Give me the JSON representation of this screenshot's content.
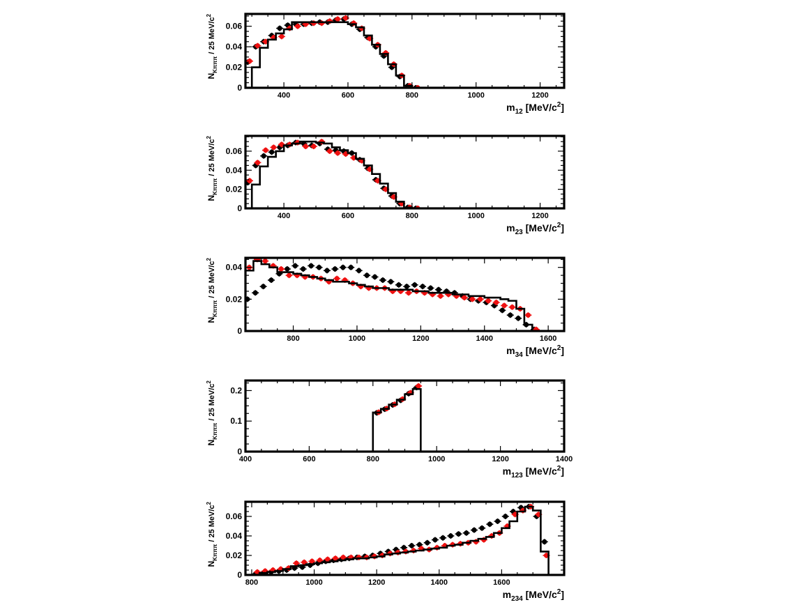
{
  "chart_data": [
    {
      "type": "line",
      "ylabel": "N",
      "ylabel_sub": "Kπππ",
      "ylabel_rest": " / 25 MeV/c",
      "ylabel_sup": "2",
      "xlabel": "m",
      "xlabel_sub": "12",
      "xlabel_rest": " [MeV/c",
      "xlabel_sup": "2",
      "xlabel_end": "]",
      "xlim": [
        280,
        1275
      ],
      "ylim": [
        0,
        0.072
      ],
      "xticks": [
        400,
        600,
        800,
        1000,
        1200
      ],
      "xtick_labels": [
        "400",
        "600",
        "800",
        "1000",
        "1200"
      ],
      "yticks": [
        0,
        0.02,
        0.04,
        0.06
      ],
      "ytick_labels": [
        "0",
        "0.02",
        "0.04",
        "0.06"
      ],
      "series": [
        {
          "color": "#000000",
          "style": "points",
          "x": [
            287,
            312,
            337,
            362,
            387,
            412,
            437,
            462,
            487,
            512,
            537,
            562,
            587,
            612,
            637,
            662,
            687,
            712,
            737,
            762,
            787,
            812
          ],
          "y": [
            0.025,
            0.04,
            0.045,
            0.051,
            0.058,
            0.061,
            0.062,
            0.062,
            0.063,
            0.064,
            0.064,
            0.066,
            0.067,
            0.062,
            0.057,
            0.049,
            0.04,
            0.031,
            0.02,
            0.011,
            0.002,
            0.0
          ]
        },
        {
          "color": "#ee1111",
          "style": "points",
          "x": [
            293,
            318,
            343,
            368,
            393,
            418,
            443,
            468,
            493,
            518,
            543,
            568,
            593,
            618,
            643,
            668,
            693,
            718,
            743,
            768,
            793,
            818
          ],
          "y": [
            0.026,
            0.041,
            0.045,
            0.049,
            0.05,
            0.058,
            0.06,
            0.062,
            0.063,
            0.063,
            0.065,
            0.067,
            0.068,
            0.063,
            0.058,
            0.048,
            0.042,
            0.034,
            0.023,
            0.012,
            0.002,
            0.0
          ]
        },
        {
          "color": "#000000",
          "style": "hist",
          "edges": [
            300,
            325,
            350,
            375,
            400,
            425,
            450,
            475,
            500,
            525,
            550,
            575,
            600,
            625,
            650,
            675,
            700,
            725,
            750,
            775,
            800
          ],
          "values": [
            0.02,
            0.039,
            0.047,
            0.053,
            0.057,
            0.064,
            0.064,
            0.064,
            0.064,
            0.064,
            0.064,
            0.064,
            0.062,
            0.059,
            0.051,
            0.042,
            0.033,
            0.023,
            0.012,
            0.002
          ]
        }
      ]
    },
    {
      "type": "line",
      "ylabel": "N",
      "ylabel_sub": "Kπππ",
      "ylabel_rest": " / 25 MeV/c",
      "ylabel_sup": "2",
      "xlabel": "m",
      "xlabel_sub": "23",
      "xlabel_rest": " [MeV/c",
      "xlabel_sup": "2",
      "xlabel_end": "]",
      "xlim": [
        280,
        1275
      ],
      "ylim": [
        0,
        0.076
      ],
      "xticks": [
        400,
        600,
        800,
        1000,
        1200
      ],
      "xtick_labels": [
        "400",
        "600",
        "800",
        "1000",
        "1200"
      ],
      "yticks": [
        0,
        0.02,
        0.04,
        0.06
      ],
      "ytick_labels": [
        "0",
        "0.02",
        "0.04",
        "0.06"
      ],
      "series": [
        {
          "color": "#000000",
          "style": "points",
          "x": [
            287,
            312,
            337,
            362,
            387,
            412,
            437,
            462,
            487,
            512,
            537,
            562,
            587,
            612,
            637,
            662,
            687,
            712,
            737,
            762,
            787,
            812
          ],
          "y": [
            0.027,
            0.045,
            0.055,
            0.059,
            0.064,
            0.066,
            0.069,
            0.068,
            0.066,
            0.068,
            0.062,
            0.061,
            0.06,
            0.058,
            0.051,
            0.042,
            0.03,
            0.021,
            0.013,
            0.005,
            0.001,
            0.0
          ]
        },
        {
          "color": "#ee1111",
          "style": "points",
          "x": [
            293,
            318,
            343,
            368,
            393,
            418,
            443,
            468,
            493,
            518,
            543,
            568,
            593,
            618,
            643,
            668,
            693,
            718,
            743,
            768,
            793,
            818
          ],
          "y": [
            0.029,
            0.048,
            0.061,
            0.064,
            0.067,
            0.067,
            0.069,
            0.065,
            0.065,
            0.07,
            0.06,
            0.058,
            0.057,
            0.053,
            0.05,
            0.041,
            0.029,
            0.02,
            0.012,
            0.005,
            0.001,
            0.0
          ]
        },
        {
          "color": "#000000",
          "style": "hist",
          "edges": [
            300,
            325,
            350,
            375,
            400,
            425,
            450,
            475,
            500,
            525,
            550,
            575,
            600,
            625,
            650,
            675,
            700,
            725,
            750,
            775,
            800
          ],
          "values": [
            0.025,
            0.044,
            0.054,
            0.06,
            0.066,
            0.068,
            0.07,
            0.07,
            0.069,
            0.068,
            0.064,
            0.061,
            0.058,
            0.052,
            0.045,
            0.036,
            0.026,
            0.016,
            0.007,
            0.001
          ]
        }
      ]
    },
    {
      "type": "line",
      "ylabel": "N",
      "ylabel_sub": "Kπππ",
      "ylabel_rest": " / 25 MeV/c",
      "ylabel_sup": "2",
      "xlabel": "m",
      "xlabel_sub": "34",
      "xlabel_rest": " [MeV/c",
      "xlabel_sup": "2",
      "xlabel_end": "]",
      "xlim": [
        650,
        1650
      ],
      "ylim": [
        0,
        0.046
      ],
      "xticks": [
        800,
        1000,
        1200,
        1400,
        1600
      ],
      "xtick_labels": [
        "800",
        "1000",
        "1200",
        "1400",
        "1600"
      ],
      "yticks": [
        0,
        0.02,
        0.04
      ],
      "ytick_labels": [
        "0",
        "0.02",
        "0.04"
      ],
      "series": [
        {
          "color": "#000000",
          "style": "points",
          "x": [
            656,
            681,
            706,
            731,
            756,
            781,
            806,
            831,
            856,
            881,
            906,
            931,
            956,
            981,
            1006,
            1031,
            1056,
            1081,
            1106,
            1131,
            1156,
            1181,
            1206,
            1231,
            1256,
            1281,
            1306,
            1331,
            1356,
            1381,
            1406,
            1431,
            1456,
            1481,
            1506,
            1531,
            1556
          ],
          "y": [
            0.02,
            0.024,
            0.028,
            0.032,
            0.036,
            0.039,
            0.041,
            0.039,
            0.041,
            0.04,
            0.038,
            0.039,
            0.04,
            0.04,
            0.038,
            0.035,
            0.034,
            0.032,
            0.031,
            0.029,
            0.028,
            0.029,
            0.028,
            0.027,
            0.026,
            0.025,
            0.024,
            0.022,
            0.02,
            0.019,
            0.018,
            0.016,
            0.013,
            0.01,
            0.008,
            0.004,
            0.001
          ]
        },
        {
          "color": "#ee1111",
          "style": "points",
          "x": [
            662,
            687,
            712,
            737,
            762,
            787,
            812,
            837,
            862,
            887,
            912,
            937,
            962,
            987,
            1012,
            1037,
            1062,
            1087,
            1112,
            1137,
            1162,
            1187,
            1212,
            1237,
            1262,
            1287,
            1312,
            1337,
            1362,
            1387,
            1412,
            1437,
            1462,
            1487,
            1512,
            1537,
            1562
          ],
          "y": [
            0.04,
            0.045,
            0.044,
            0.041,
            0.039,
            0.035,
            0.035,
            0.034,
            0.034,
            0.033,
            0.031,
            0.033,
            0.032,
            0.03,
            0.028,
            0.027,
            0.027,
            0.027,
            0.025,
            0.025,
            0.024,
            0.025,
            0.024,
            0.023,
            0.022,
            0.023,
            0.022,
            0.021,
            0.02,
            0.02,
            0.019,
            0.018,
            0.016,
            0.015,
            0.014,
            0.01,
            0.001
          ]
        },
        {
          "color": "#000000",
          "style": "hist",
          "edges": [
            650,
            675,
            700,
            725,
            750,
            775,
            800,
            825,
            850,
            875,
            900,
            925,
            950,
            975,
            1000,
            1025,
            1050,
            1075,
            1100,
            1125,
            1150,
            1175,
            1200,
            1225,
            1250,
            1275,
            1300,
            1325,
            1350,
            1375,
            1400,
            1425,
            1450,
            1475,
            1500,
            1525,
            1550,
            1575
          ],
          "values": [
            0.038,
            0.044,
            0.042,
            0.04,
            0.037,
            0.037,
            0.036,
            0.035,
            0.034,
            0.033,
            0.032,
            0.031,
            0.031,
            0.03,
            0.029,
            0.028,
            0.027,
            0.027,
            0.026,
            0.026,
            0.026,
            0.025,
            0.025,
            0.024,
            0.024,
            0.024,
            0.023,
            0.023,
            0.022,
            0.022,
            0.021,
            0.021,
            0.02,
            0.019,
            0.014,
            0.004,
            0.0
          ]
        }
      ]
    },
    {
      "type": "line",
      "ylabel": "N",
      "ylabel_sub": "Kπππ",
      "ylabel_rest": " / 25 MeV/c",
      "ylabel_sup": "2",
      "xlabel": "m",
      "xlabel_sub": "123",
      "xlabel_rest": " [MeV/c",
      "xlabel_sup": "2",
      "xlabel_end": "]",
      "xlim": [
        400,
        1400
      ],
      "ylim": [
        0,
        0.233
      ],
      "xticks": [
        400,
        600,
        800,
        1000,
        1200,
        1400
      ],
      "xtick_labels": [
        "400",
        "600",
        "800",
        "1000",
        "1200",
        "1400"
      ],
      "yticks": [
        0,
        0.1,
        0.2
      ],
      "ytick_labels": [
        "0",
        "0.1",
        "0.2"
      ],
      "series": [
        {
          "color": "#000000",
          "style": "points",
          "x": [
            812,
            837,
            862,
            887,
            912,
            937
          ],
          "y": [
            0.127,
            0.139,
            0.153,
            0.168,
            0.19,
            0.21
          ]
        },
        {
          "color": "#ee1111",
          "style": "points",
          "x": [
            818,
            843,
            868,
            893,
            918,
            943
          ],
          "y": [
            0.129,
            0.141,
            0.155,
            0.172,
            0.193,
            0.215
          ]
        },
        {
          "color": "#000000",
          "style": "hist",
          "edges": [
            800,
            825,
            850,
            875,
            900,
            925,
            950
          ],
          "values": [
            0.128,
            0.14,
            0.154,
            0.17,
            0.188,
            0.205
          ]
        }
      ]
    },
    {
      "type": "line",
      "ylabel": "N",
      "ylabel_sub": "Kπππ",
      "ylabel_rest": " / 25 MeV/c",
      "ylabel_sup": "2",
      "xlabel": "m",
      "xlabel_sub": "234",
      "xlabel_rest": " [MeV/c",
      "xlabel_sup": "2",
      "xlabel_end": "]",
      "xlim": [
        780,
        1800
      ],
      "ylim": [
        0,
        0.075
      ],
      "xticks": [
        800,
        1000,
        1200,
        1400,
        1600
      ],
      "xtick_labels": [
        "800",
        "1000",
        "1200",
        "1400",
        "1600"
      ],
      "yticks": [
        0,
        0.02,
        0.04,
        0.06
      ],
      "ytick_labels": [
        "0",
        "0.02",
        "0.04",
        "0.06"
      ],
      "series": [
        {
          "color": "#000000",
          "style": "points",
          "x": [
            812,
            837,
            862,
            887,
            912,
            937,
            962,
            987,
            1012,
            1037,
            1062,
            1087,
            1112,
            1137,
            1162,
            1187,
            1212,
            1237,
            1262,
            1287,
            1312,
            1337,
            1362,
            1387,
            1412,
            1437,
            1462,
            1487,
            1512,
            1537,
            1562,
            1587,
            1612,
            1637,
            1662,
            1687,
            1712,
            1737
          ],
          "y": [
            0.001,
            0.002,
            0.003,
            0.004,
            0.005,
            0.007,
            0.008,
            0.01,
            0.012,
            0.014,
            0.015,
            0.016,
            0.017,
            0.018,
            0.019,
            0.02,
            0.022,
            0.024,
            0.026,
            0.028,
            0.03,
            0.031,
            0.033,
            0.036,
            0.038,
            0.04,
            0.042,
            0.043,
            0.046,
            0.048,
            0.052,
            0.055,
            0.06,
            0.065,
            0.069,
            0.07,
            0.06,
            0.034
          ]
        },
        {
          "color": "#ee1111",
          "style": "points",
          "x": [
            818,
            843,
            868,
            893,
            918,
            943,
            968,
            993,
            1018,
            1043,
            1068,
            1093,
            1118,
            1143,
            1168,
            1193,
            1218,
            1243,
            1268,
            1293,
            1318,
            1343,
            1368,
            1393,
            1418,
            1443,
            1468,
            1493,
            1518,
            1543,
            1568,
            1593,
            1618,
            1643,
            1668,
            1693,
            1718,
            1743
          ],
          "y": [
            0.003,
            0.004,
            0.005,
            0.006,
            0.007,
            0.012,
            0.013,
            0.014,
            0.015,
            0.016,
            0.017,
            0.018,
            0.018,
            0.018,
            0.018,
            0.019,
            0.02,
            0.022,
            0.023,
            0.024,
            0.025,
            0.027,
            0.026,
            0.028,
            0.03,
            0.031,
            0.032,
            0.033,
            0.034,
            0.036,
            0.04,
            0.043,
            0.05,
            0.062,
            0.066,
            0.07,
            0.062,
            0.02
          ]
        },
        {
          "color": "#000000",
          "style": "hist",
          "edges": [
            825,
            850,
            875,
            900,
            925,
            950,
            975,
            1000,
            1025,
            1050,
            1075,
            1100,
            1125,
            1150,
            1175,
            1200,
            1225,
            1250,
            1275,
            1300,
            1325,
            1350,
            1375,
            1400,
            1425,
            1450,
            1475,
            1500,
            1525,
            1550,
            1575,
            1600,
            1625,
            1650,
            1675,
            1700,
            1725,
            1750
          ],
          "values": [
            0.002,
            0.003,
            0.004,
            0.006,
            0.009,
            0.01,
            0.011,
            0.012,
            0.013,
            0.014,
            0.015,
            0.016,
            0.017,
            0.017,
            0.018,
            0.019,
            0.021,
            0.022,
            0.023,
            0.024,
            0.025,
            0.026,
            0.027,
            0.028,
            0.03,
            0.031,
            0.033,
            0.035,
            0.037,
            0.039,
            0.043,
            0.048,
            0.055,
            0.065,
            0.07,
            0.066,
            0.024
          ]
        }
      ]
    }
  ]
}
